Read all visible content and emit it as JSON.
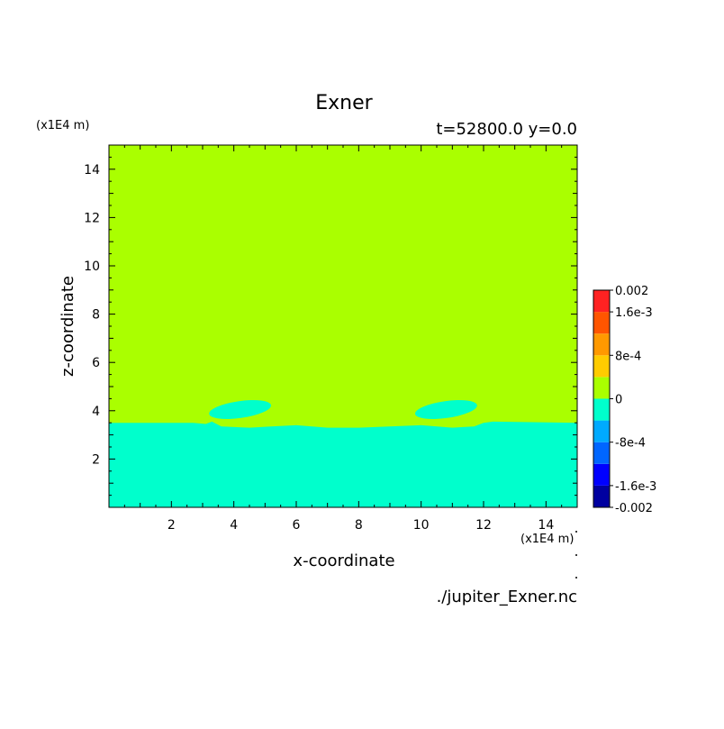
{
  "chart_data": {
    "type": "heatmap",
    "title": "Exner",
    "subtitle": "t=52800.0 y=0.0",
    "xlabel": "x-coordinate",
    "ylabel": "z-coordinate",
    "x_unit": "(x1E4 m)",
    "y_unit": "(x1E4 m)",
    "xlim": [
      0,
      15
    ],
    "ylim": [
      0,
      15
    ],
    "x_ticks": [
      2,
      4,
      6,
      8,
      10,
      12,
      14
    ],
    "y_ticks": [
      2,
      4,
      6,
      8,
      10,
      12,
      14
    ],
    "fields": [
      {
        "region": "upper",
        "value_range": [
          0,
          0.0004
        ],
        "color": "#aaff00"
      },
      {
        "region": "lower",
        "value_range": [
          -0.0004,
          0
        ],
        "color": "#00ffcc"
      }
    ],
    "interface_z": [
      [
        0,
        3.5
      ],
      [
        2.7,
        3.5
      ],
      [
        3.1,
        3.45
      ],
      [
        3.3,
        3.55
      ],
      [
        3.6,
        3.35
      ],
      [
        4.5,
        3.3
      ],
      [
        5.2,
        3.35
      ],
      [
        6.0,
        3.4
      ],
      [
        7.0,
        3.3
      ],
      [
        8.0,
        3.3
      ],
      [
        9.0,
        3.35
      ],
      [
        10.0,
        3.4
      ],
      [
        11.0,
        3.3
      ],
      [
        11.7,
        3.35
      ],
      [
        12.0,
        3.5
      ],
      [
        12.3,
        3.55
      ],
      [
        15,
        3.5
      ]
    ],
    "negative_lobes": [
      {
        "x_center": 4.2,
        "z_center": 4.05,
        "x_extent": [
          3.2,
          5.2
        ],
        "z_extent": [
          3.75,
          4.45
        ]
      },
      {
        "x_center": 10.8,
        "z_center": 4.05,
        "x_extent": [
          9.8,
          11.8
        ],
        "z_extent": [
          3.75,
          4.45
        ]
      }
    ],
    "colorbar": {
      "labels": [
        "0.002",
        "1.6e-3",
        "8e-4",
        "0",
        "-8e-4",
        "-1.6e-3",
        "-0.002"
      ],
      "levels": [
        -0.002,
        -0.0016,
        -0.0012,
        -0.0008,
        -0.0004,
        0,
        0.0004,
        0.0008,
        0.0012,
        0.0016,
        0.002
      ],
      "colors": [
        "#0000a0",
        "#0000ff",
        "#0066ff",
        "#00aaff",
        "#00ffcc",
        "#aaff00",
        "#ffcc00",
        "#ff9900",
        "#ff5500",
        "#ff2222"
      ]
    },
    "source_file": "./jupiter_Exner.nc"
  }
}
